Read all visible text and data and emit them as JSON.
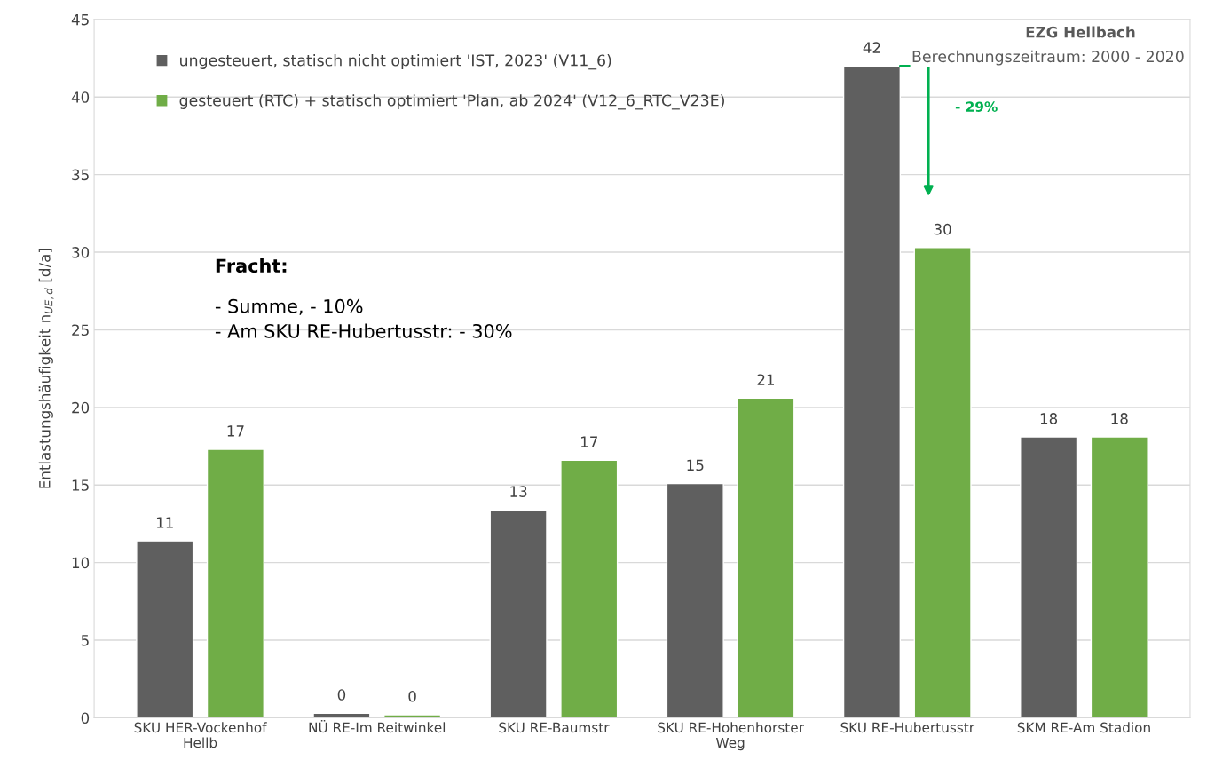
{
  "chart_data": {
    "type": "bar",
    "title": "EZG Hellbach",
    "subtitle": "Berechnungszeitraum: 2000 - 2020",
    "ylabel": "Entlastungshäufigkeit n$_{UE,d}$ [d/a]",
    "categories": [
      "SKU HER-Vockenhof\nHellb",
      "NÜ RE-Im Reitwinkel",
      "SKU RE-Baumstr",
      "SKU RE-Hohenhorster\nWeg",
      "SKU RE-Hubertusstr",
      "SKM RE-Am Stadion"
    ],
    "series": [
      {
        "name": "ungesteuert, statisch nicht optimiert 'IST, 2023' (V11_6)",
        "color": "#5f5f5f",
        "values": [
          11.4,
          0.3,
          13.4,
          15.1,
          42.0,
          18.1
        ],
        "value_labels": [
          "11",
          "0",
          "13",
          "15",
          "42",
          "18"
        ]
      },
      {
        "name": "gesteuert (RTC) + statisch optimiert 'Plan, ab 2024' (V12_6_RTC_V23E)",
        "color": "#70ad47",
        "values": [
          17.3,
          0.2,
          16.6,
          20.6,
          30.3,
          18.1
        ],
        "value_labels": [
          "17",
          "0",
          "17",
          "21",
          "30",
          "18"
        ]
      }
    ],
    "ylim": [
      0,
      45
    ],
    "yticks": [
      0,
      5,
      10,
      15,
      20,
      25,
      30,
      35,
      40,
      45
    ],
    "grid": "y",
    "legend": "top left",
    "annotations": [
      "Fracht:",
      "- Summe, - 10%\n- Am SKU RE-Hubertusstr: - 30%",
      "- 29%"
    ]
  }
}
